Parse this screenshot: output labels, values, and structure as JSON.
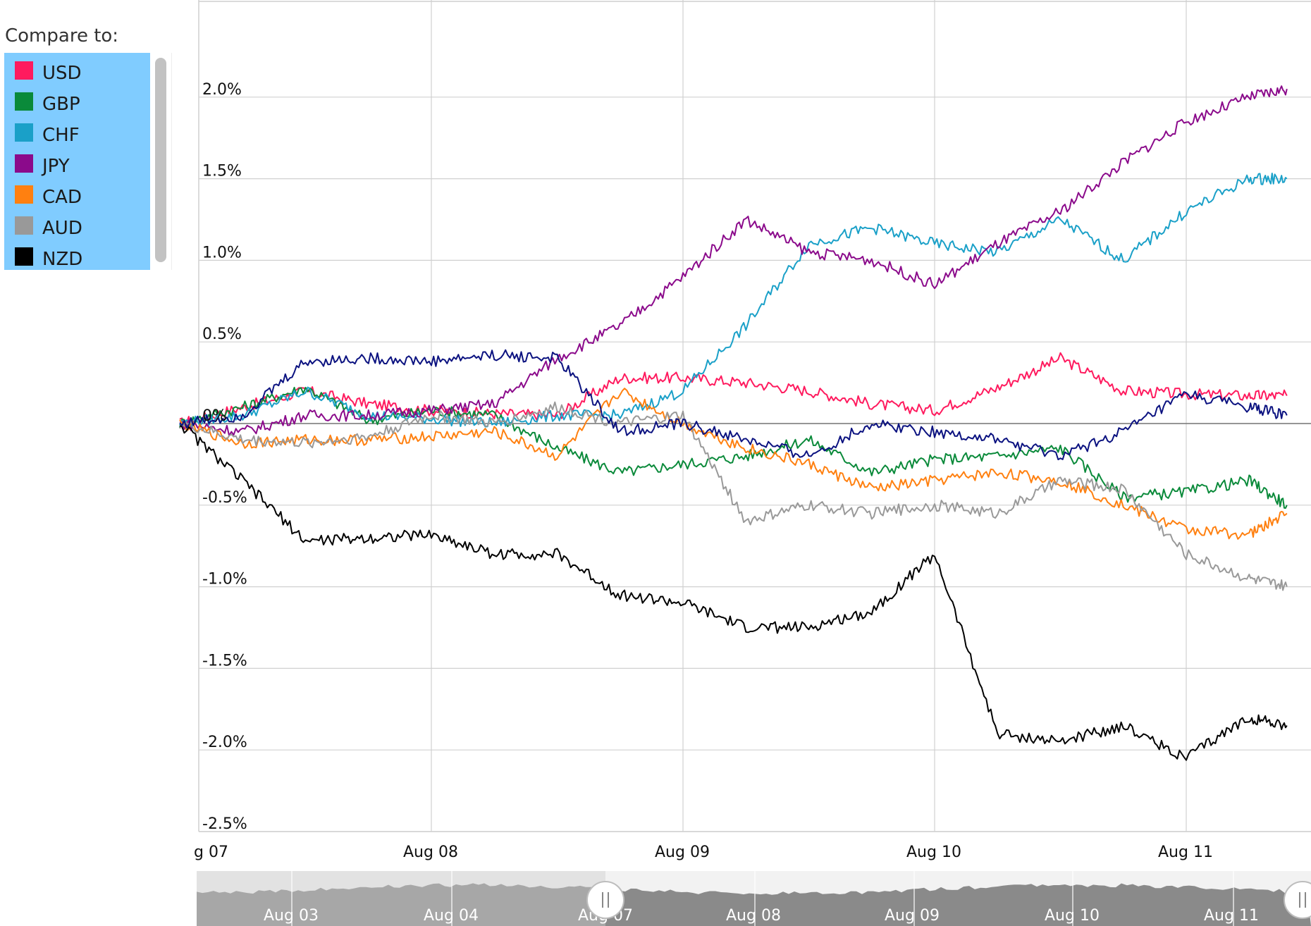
{
  "legend": {
    "title": "Compare to:",
    "items": [
      {
        "label": "USD",
        "color": "#ff1a5e"
      },
      {
        "label": "GBP",
        "color": "#0a8a3a"
      },
      {
        "label": "CHF",
        "color": "#1aa0c8"
      },
      {
        "label": "JPY",
        "color": "#8b0a8b"
      },
      {
        "label": "CAD",
        "color": "#ff8010"
      },
      {
        "label": "AUD",
        "color": "#999999"
      },
      {
        "label": "NZD",
        "color": "#000000"
      }
    ]
  },
  "chart_data": {
    "type": "line",
    "y_ticks": [
      "2.0%",
      "1.5%",
      "1.0%",
      "0.5%",
      "0%",
      "-0.5%",
      "-1.0%",
      "-1.5%",
      "-2.0%",
      "-2.5%"
    ],
    "y_tick_values": [
      2.0,
      1.5,
      1.0,
      0.5,
      0,
      -0.5,
      -1.0,
      -1.5,
      -2.0,
      -2.5
    ],
    "ylim": [
      -2.5,
      2.5
    ],
    "x_ticks": [
      "g 07",
      "Aug 08",
      "Aug 09",
      "Aug 10",
      "Aug 11"
    ],
    "x_tick_values": [
      0,
      1,
      2,
      3,
      4
    ],
    "xlim": [
      0,
      4.4
    ],
    "grid": true,
    "x": [
      0,
      0.25,
      0.5,
      0.75,
      1.0,
      1.25,
      1.5,
      1.75,
      2.0,
      2.25,
      2.5,
      2.75,
      3.0,
      3.25,
      3.5,
      3.75,
      4.0,
      4.25,
      4.4
    ],
    "series": [
      {
        "color": "#ff1a5e",
        "values": [
          0.0,
          0.1,
          0.2,
          0.12,
          0.08,
          0.06,
          0.05,
          0.28,
          0.28,
          0.25,
          0.2,
          0.12,
          0.08,
          0.22,
          0.4,
          0.2,
          0.18,
          0.17,
          0.17
        ]
      },
      {
        "color": "#0a8a3a",
        "values": [
          0.0,
          0.1,
          0.22,
          0.02,
          0.08,
          0.05,
          -0.15,
          -0.3,
          -0.25,
          -0.2,
          -0.1,
          -0.3,
          -0.22,
          -0.2,
          -0.15,
          -0.45,
          -0.42,
          -0.35,
          -0.5
        ]
      },
      {
        "color": "#1aa0c8",
        "values": [
          0.0,
          0.05,
          0.2,
          0.05,
          0.03,
          0.0,
          0.05,
          0.05,
          0.2,
          0.6,
          1.1,
          1.2,
          1.1,
          1.05,
          1.25,
          1.0,
          1.3,
          1.5,
          1.5
        ]
      },
      {
        "color": "#8b0a8b",
        "values": [
          0.0,
          -0.05,
          0.05,
          0.05,
          0.08,
          0.12,
          0.4,
          0.6,
          0.9,
          1.25,
          1.05,
          1.0,
          0.85,
          1.1,
          1.3,
          1.6,
          1.85,
          2.0,
          2.05
        ]
      },
      {
        "color": "#ff8010",
        "values": [
          0.0,
          -0.12,
          -0.1,
          -0.1,
          -0.08,
          -0.05,
          -0.2,
          0.2,
          0.0,
          -0.15,
          -0.25,
          -0.4,
          -0.35,
          -0.3,
          -0.35,
          -0.5,
          -0.65,
          -0.68,
          -0.55
        ]
      },
      {
        "color": "#999999",
        "values": [
          0.0,
          -0.1,
          -0.12,
          -0.08,
          0.05,
          0.0,
          0.1,
          0.0,
          0.05,
          -0.6,
          -0.5,
          -0.55,
          -0.5,
          -0.55,
          -0.35,
          -0.4,
          -0.8,
          -0.95,
          -1.0
        ]
      },
      {
        "color": "#000000",
        "values": [
          0.0,
          -0.35,
          -0.72,
          -0.7,
          -0.68,
          -0.8,
          -0.8,
          -1.05,
          -1.1,
          -1.25,
          -1.25,
          -1.15,
          -0.8,
          -1.9,
          -1.95,
          -1.85,
          -2.05,
          -1.8,
          -1.85
        ]
      },
      {
        "color": "#0b1280",
        "values": [
          0.0,
          0.05,
          0.38,
          0.4,
          0.38,
          0.42,
          0.4,
          -0.05,
          0.0,
          -0.1,
          -0.2,
          0.0,
          -0.05,
          -0.1,
          -0.2,
          -0.05,
          0.18,
          0.1,
          0.05
        ]
      }
    ]
  },
  "navigator": {
    "labels": [
      "Aug 03",
      "Aug 04",
      "Aug 07",
      "Aug 08",
      "Aug 09",
      "Aug 10",
      "Aug 11"
    ]
  }
}
